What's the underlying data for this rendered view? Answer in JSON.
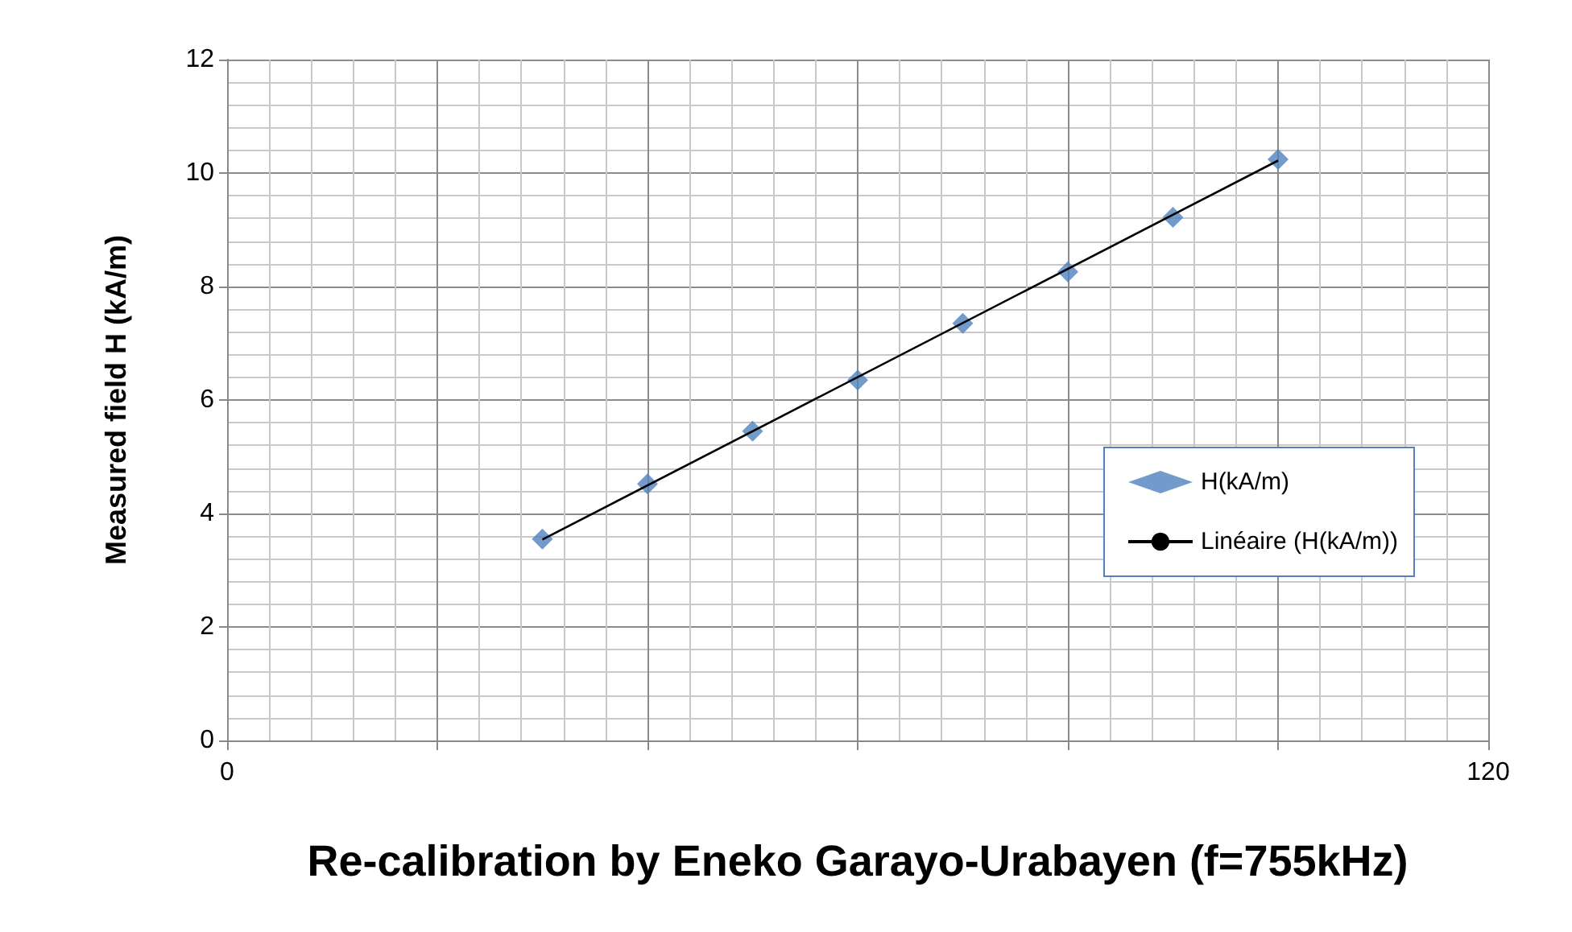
{
  "chart_data": {
    "type": "scatter",
    "xlabel": "Re-calibration by Eneko Garayo-Urabayen (f=755kHz)",
    "ylabel": "Measured field H (kA/m)",
    "x": [
      30,
      40,
      50,
      60,
      70,
      80,
      90,
      100
    ],
    "series": [
      {
        "name": "H(kA/m)",
        "color": "#4f81bd",
        "marker": "diamond",
        "values": [
          3.55,
          4.52,
          5.45,
          6.35,
          7.35,
          8.26,
          9.22,
          10.24
        ]
      },
      {
        "name": "Linéaire (H(kA/m))",
        "type": "line",
        "color": "#000000",
        "marker": "none",
        "x": [
          30,
          100
        ],
        "values": [
          3.54,
          10.22
        ]
      }
    ],
    "xlim": [
      0,
      120
    ],
    "xticks": [
      0,
      {
        "value": 20,
        "label": null
      },
      {
        "value": 40,
        "label": null
      },
      {
        "value": 60,
        "label": null
      },
      {
        "value": 80,
        "label": null
      },
      {
        "value": 100,
        "label": null
      },
      120
    ],
    "ylim": [
      0,
      12
    ],
    "yticks": [
      0,
      2,
      4,
      6,
      8,
      10,
      12
    ],
    "grid": true,
    "legend": "right"
  }
}
